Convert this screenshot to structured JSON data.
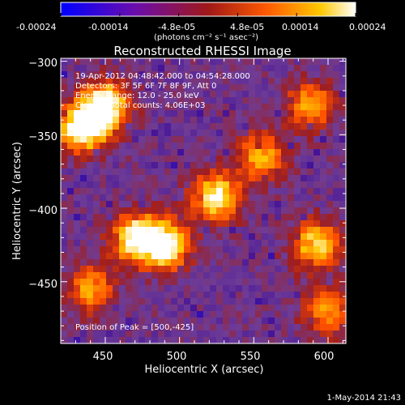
{
  "colorbar": {
    "ticks": [
      "-0.00024",
      "-0.00014",
      "-4.8e-05",
      "4.8e-05",
      "0.00014",
      "0.00024"
    ],
    "units": "(photons cm⁻² s⁻¹ asec⁻²)",
    "range": [
      -0.00024,
      0.00024
    ],
    "colors": [
      "#0000ff",
      "#7a00b3",
      "#b22222",
      "#ff6a00",
      "#ffd000",
      "#ffffff"
    ]
  },
  "chart_data": {
    "type": "heatmap",
    "title": "Reconstructed RHESSI Image",
    "xlabel": "Heliocentric X (arcsec)",
    "ylabel": "Heliocentric Y (arcsec)",
    "xlim": [
      420,
      612
    ],
    "ylim": [
      -492,
      -298
    ],
    "xticks": [
      450,
      500,
      550,
      600
    ],
    "yticks": [
      -300,
      -350,
      -400,
      -450
    ],
    "xtick_labels": [
      "450",
      "500",
      "550",
      "600"
    ],
    "ytick_labels": [
      "−300",
      "−350",
      "−400",
      "−450"
    ],
    "annotations": [
      "19-Apr-2012 04:48:42.000 to 04:54:28.000",
      "Detectors: 3F 5F 6F 7F 8F 9F, Att 0",
      "Energy Range: 12.0 - 25.0 keV",
      "Clean     Total counts: 4.06E+03"
    ],
    "peak_label": "Position of Peak = [500,-425]",
    "peak": [
      500,
      -425
    ],
    "bright_regions": [
      {
        "x": 435,
        "y": -345,
        "level": 1.0
      },
      {
        "x": 450,
        "y": -330,
        "level": 0.9
      },
      {
        "x": 490,
        "y": -425,
        "level": 1.0
      },
      {
        "x": 470,
        "y": -420,
        "level": 0.85
      },
      {
        "x": 525,
        "y": -392,
        "level": 0.85
      },
      {
        "x": 555,
        "y": -365,
        "level": 0.6
      },
      {
        "x": 592,
        "y": -425,
        "level": 0.75
      },
      {
        "x": 588,
        "y": -330,
        "level": 0.6
      },
      {
        "x": 440,
        "y": -455,
        "level": 0.55
      },
      {
        "x": 600,
        "y": -470,
        "level": 0.55
      }
    ]
  },
  "footer": {
    "timestamp": "1-May-2014 21:43"
  }
}
